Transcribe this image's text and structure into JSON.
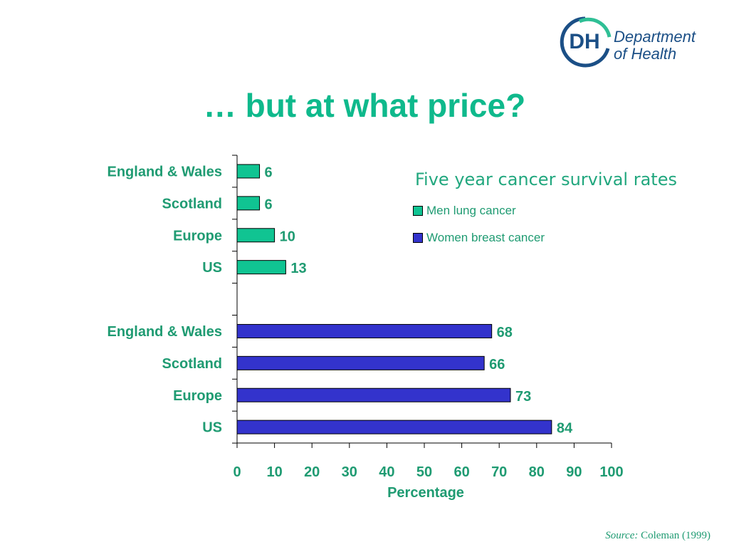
{
  "logo": {
    "mark": "DH",
    "line1": "Department",
    "line2": "of Health"
  },
  "title": "… but at what price?",
  "legend": {
    "title": "Five year cancer survival rates",
    "items": [
      {
        "label": "Men lung cancer",
        "color": "#10c492"
      },
      {
        "label": "Women breast cancer",
        "color": "#3333cc"
      }
    ]
  },
  "source": {
    "prefix": "Source:",
    "text": "Coleman (1999)"
  },
  "chart_data": {
    "type": "bar",
    "orientation": "horizontal",
    "title": "",
    "xlabel": "Percentage",
    "ylabel": "",
    "xlim": [
      0,
      100
    ],
    "xticks": [
      0,
      10,
      20,
      30,
      40,
      50,
      60,
      70,
      80,
      90,
      100
    ],
    "series": [
      {
        "name": "Men lung cancer",
        "color": "#10c492",
        "categories": [
          "England & Wales",
          "Scotland",
          "Europe",
          "US"
        ],
        "values": [
          6,
          6,
          10,
          13
        ]
      },
      {
        "name": "Women breast cancer",
        "color": "#3333cc",
        "categories": [
          "England & Wales",
          "Scotland",
          "Europe",
          "US"
        ],
        "values": [
          68,
          66,
          73,
          84
        ]
      }
    ],
    "text_color": "#1f9b72"
  }
}
